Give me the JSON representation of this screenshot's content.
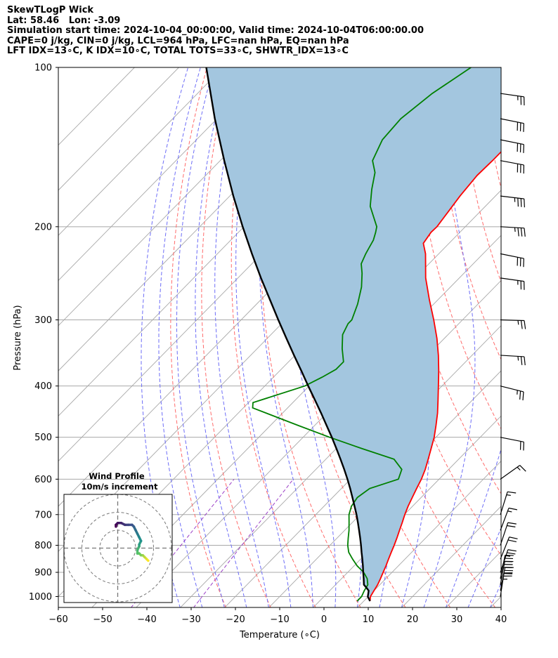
{
  "header": {
    "line1": "SkewTLogP Wick",
    "line2": "Lat: 58.46   Lon: -3.09",
    "line3": "Simulation start time: 2024-10-04_00:00:00, Valid time: 2024-10-04T06:00:00.00",
    "line4": "CAPE=0 j/kg, CIN=0 j/kg, LCL=964 hPa, LFC=nan hPa, EQ=nan hPa",
    "line5": "LFT IDX=13∘C, K IDX=10∘C, TOTAL TOTS=33∘C, SHWTR_IDX=13∘C"
  },
  "colors": {
    "temperature": "#ff0000",
    "dewpoint": "#008000",
    "parcel": "#000000",
    "shade": "#a3c6df",
    "isotherm": "#a8a8a8",
    "dry_adiabat": "#ff6b6b",
    "moist_adiabat": "#6d6df7",
    "mixing_ratio": "#9b3fc7"
  },
  "chart_data": [
    {
      "type": "line",
      "subtype": "skew-t log-p",
      "xlabel": "Temperature (∘C)",
      "ylabel": "Pressure (hPa)",
      "xlim": [
        -60,
        40
      ],
      "ylim": [
        1050,
        100
      ],
      "y_scale": "log",
      "grid": true,
      "x_ticks": [
        "−60",
        "−50",
        "−40",
        "−30",
        "−20",
        "−10",
        "0",
        "10",
        "20",
        "30",
        "40"
      ],
      "y_ticks": [
        "100",
        "200",
        "300",
        "400",
        "500",
        "600",
        "700",
        "800",
        "900",
        "1000"
      ],
      "series": [
        {
          "key": "temperature",
          "points": [
            [
              11.4,
              1020
            ],
            [
              10.5,
              1000
            ],
            [
              10.0,
              975
            ],
            [
              9.5,
              950
            ],
            [
              8.8,
              925
            ],
            [
              8.0,
              900
            ],
            [
              7.2,
              875
            ],
            [
              6.3,
              850
            ],
            [
              5.4,
              825
            ],
            [
              4.5,
              800
            ],
            [
              3.5,
              775
            ],
            [
              2.4,
              750
            ],
            [
              1.3,
              725
            ],
            [
              0.1,
              700
            ],
            [
              -1.0,
              675
            ],
            [
              -2.0,
              650
            ],
            [
              -3.0,
              625
            ],
            [
              -4.0,
              600
            ],
            [
              -5.3,
              575
            ],
            [
              -6.9,
              550
            ],
            [
              -8.6,
              525
            ],
            [
              -10.4,
              500
            ],
            [
              -12.6,
              475
            ],
            [
              -15.0,
              450
            ],
            [
              -17.8,
              425
            ],
            [
              -20.8,
              400
            ],
            [
              -24.0,
              375
            ],
            [
              -27.6,
              350
            ],
            [
              -31.7,
              325
            ],
            [
              -36.5,
              300
            ],
            [
              -41.9,
              275
            ],
            [
              -47.6,
              250
            ],
            [
              -53.0,
              225
            ],
            [
              -55.8,
              215
            ],
            [
              -56.5,
              205
            ],
            [
              -56.4,
              200
            ],
            [
              -58.0,
              175
            ],
            [
              -58.7,
              160
            ],
            [
              -58.5,
              150
            ],
            [
              -58.5,
              137
            ],
            [
              -58.4,
              125
            ],
            [
              -58.5,
              112
            ],
            [
              -58.0,
              100
            ]
          ]
        },
        {
          "key": "dewpoint",
          "points": [
            [
              8.5,
              1020
            ],
            [
              8.5,
              1000
            ],
            [
              7.8,
              975
            ],
            [
              7.3,
              950
            ],
            [
              5.8,
              925
            ],
            [
              3.6,
              900
            ],
            [
              0.7,
              875
            ],
            [
              -1.8,
              850
            ],
            [
              -4.2,
              825
            ],
            [
              -6.0,
              800
            ],
            [
              -7.5,
              775
            ],
            [
              -9.0,
              750
            ],
            [
              -10.7,
              725
            ],
            [
              -12.5,
              700
            ],
            [
              -13.8,
              675
            ],
            [
              -14.4,
              650
            ],
            [
              -13.6,
              625
            ],
            [
              -9.2,
              600
            ],
            [
              -10.6,
              575
            ],
            [
              -14.6,
              550
            ],
            [
              -24.3,
              525
            ],
            [
              -34.0,
              500
            ],
            [
              -43.7,
              475
            ],
            [
              -57.9,
              440
            ],
            [
              -59.0,
              430
            ],
            [
              -51.0,
              400
            ],
            [
              -49.0,
              385
            ],
            [
              -47.6,
              372
            ],
            [
              -47.6,
              360
            ],
            [
              -50.8,
              340
            ],
            [
              -53.8,
              320
            ],
            [
              -55.0,
              305
            ],
            [
              -55.0,
              300
            ],
            [
              -57.2,
              280
            ],
            [
              -60.1,
              260
            ],
            [
              -63.0,
              245
            ],
            [
              -65.3,
              235
            ],
            [
              -66.5,
              225
            ],
            [
              -67.0,
              220
            ],
            [
              -67.8,
              212
            ],
            [
              -69.0,
              205
            ],
            [
              -70.0,
              200
            ],
            [
              -76.0,
              183
            ],
            [
              -79.4,
              170
            ],
            [
              -82.4,
              158
            ],
            [
              -85.6,
              150
            ],
            [
              -88.0,
              137
            ],
            [
              -88.5,
              125
            ],
            [
              -87.0,
              112
            ],
            [
              -84.0,
              100
            ]
          ]
        },
        {
          "key": "parcel",
          "points": [
            [
              11.4,
              1020
            ],
            [
              9.9,
              1000
            ],
            [
              8.8,
              975
            ],
            [
              7.8,
              964
            ],
            [
              6.4,
              950
            ],
            [
              5.0,
              925
            ],
            [
              3.5,
              900
            ],
            [
              2.0,
              875
            ],
            [
              0.4,
              850
            ],
            [
              -1.3,
              825
            ],
            [
              -3.0,
              800
            ],
            [
              -4.8,
              775
            ],
            [
              -6.7,
              750
            ],
            [
              -8.7,
              725
            ],
            [
              -10.8,
              700
            ],
            [
              -13.1,
              675
            ],
            [
              -15.5,
              650
            ],
            [
              -18.0,
              625
            ],
            [
              -20.7,
              600
            ],
            [
              -23.6,
              575
            ],
            [
              -26.7,
              550
            ],
            [
              -30.0,
              525
            ],
            [
              -33.5,
              500
            ],
            [
              -37.3,
              475
            ],
            [
              -41.3,
              450
            ],
            [
              -45.6,
              425
            ],
            [
              -50.2,
              400
            ],
            [
              -55.0,
              375
            ],
            [
              -60.2,
              350
            ],
            [
              -65.7,
              325
            ],
            [
              -71.6,
              300
            ],
            [
              -77.9,
              275
            ],
            [
              -84.8,
              250
            ],
            [
              -92.2,
              225
            ],
            [
              -100.3,
              200
            ],
            [
              -109.2,
              175
            ],
            [
              -119.1,
              150
            ],
            [
              -130.5,
              125
            ],
            [
              -143.8,
              100
            ]
          ]
        }
      ],
      "wind_barbs": [
        {
          "p": 1000,
          "u": -2.0,
          "v": -13.0
        },
        {
          "p": 975,
          "u": -3.0,
          "v": -15.0
        },
        {
          "p": 950,
          "u": -3.0,
          "v": -16.0
        },
        {
          "p": 925,
          "u": -3.0,
          "v": -15.0
        },
        {
          "p": 900,
          "u": -4.0,
          "v": -12.0
        },
        {
          "p": 850,
          "u": -4.0,
          "v": -10.0
        },
        {
          "p": 800,
          "u": -3.0,
          "v": -9.0
        },
        {
          "p": 750,
          "u": -3.0,
          "v": -8.0
        },
        {
          "p": 700,
          "u": -2.5,
          "v": -8.0
        },
        {
          "p": 600,
          "u": -7.0,
          "v": -5.0
        },
        {
          "p": 500,
          "u": -10.0,
          "v": 2.0
        },
        {
          "p": 400,
          "u": -12.0,
          "v": 3.0
        },
        {
          "p": 350,
          "u": -12.0,
          "v": 0.7
        },
        {
          "p": 300,
          "u": -13.5,
          "v": 0.4
        },
        {
          "p": 250,
          "u": -14.0,
          "v": 2.0
        },
        {
          "p": 225,
          "u": -15.0,
          "v": 3.0
        },
        {
          "p": 200,
          "u": -17.0,
          "v": 1.0
        },
        {
          "p": 175,
          "u": -17.0,
          "v": 2.0
        },
        {
          "p": 150,
          "u": -16.0,
          "v": 3.0
        },
        {
          "p": 137,
          "u": -15.0,
          "v": 3.0
        },
        {
          "p": 125,
          "u": -15.0,
          "v": 3.0
        },
        {
          "p": 112,
          "u": -14.0,
          "v": 2.0
        }
      ]
    },
    {
      "type": "scatter",
      "subtype": "hodograph",
      "title": "Wind Profile",
      "subtitle": "10m/s increment",
      "rings": [
        10,
        20,
        30
      ],
      "points": [
        [
          17,
          -7
        ],
        [
          16,
          -6
        ],
        [
          15,
          -5
        ],
        [
          14,
          -4
        ],
        [
          13,
          -4
        ],
        [
          12,
          -3
        ],
        [
          11,
          -3
        ],
        [
          11,
          -1
        ],
        [
          12,
          1
        ],
        [
          12,
          2
        ],
        [
          13,
          4
        ],
        [
          12,
          6
        ],
        [
          11,
          8
        ],
        [
          10,
          10
        ],
        [
          9,
          12
        ],
        [
          8,
          13
        ],
        [
          6,
          13
        ],
        [
          4,
          13
        ],
        [
          2,
          14
        ],
        [
          0,
          14
        ],
        [
          -1,
          13
        ],
        [
          -1,
          12
        ]
      ]
    }
  ]
}
